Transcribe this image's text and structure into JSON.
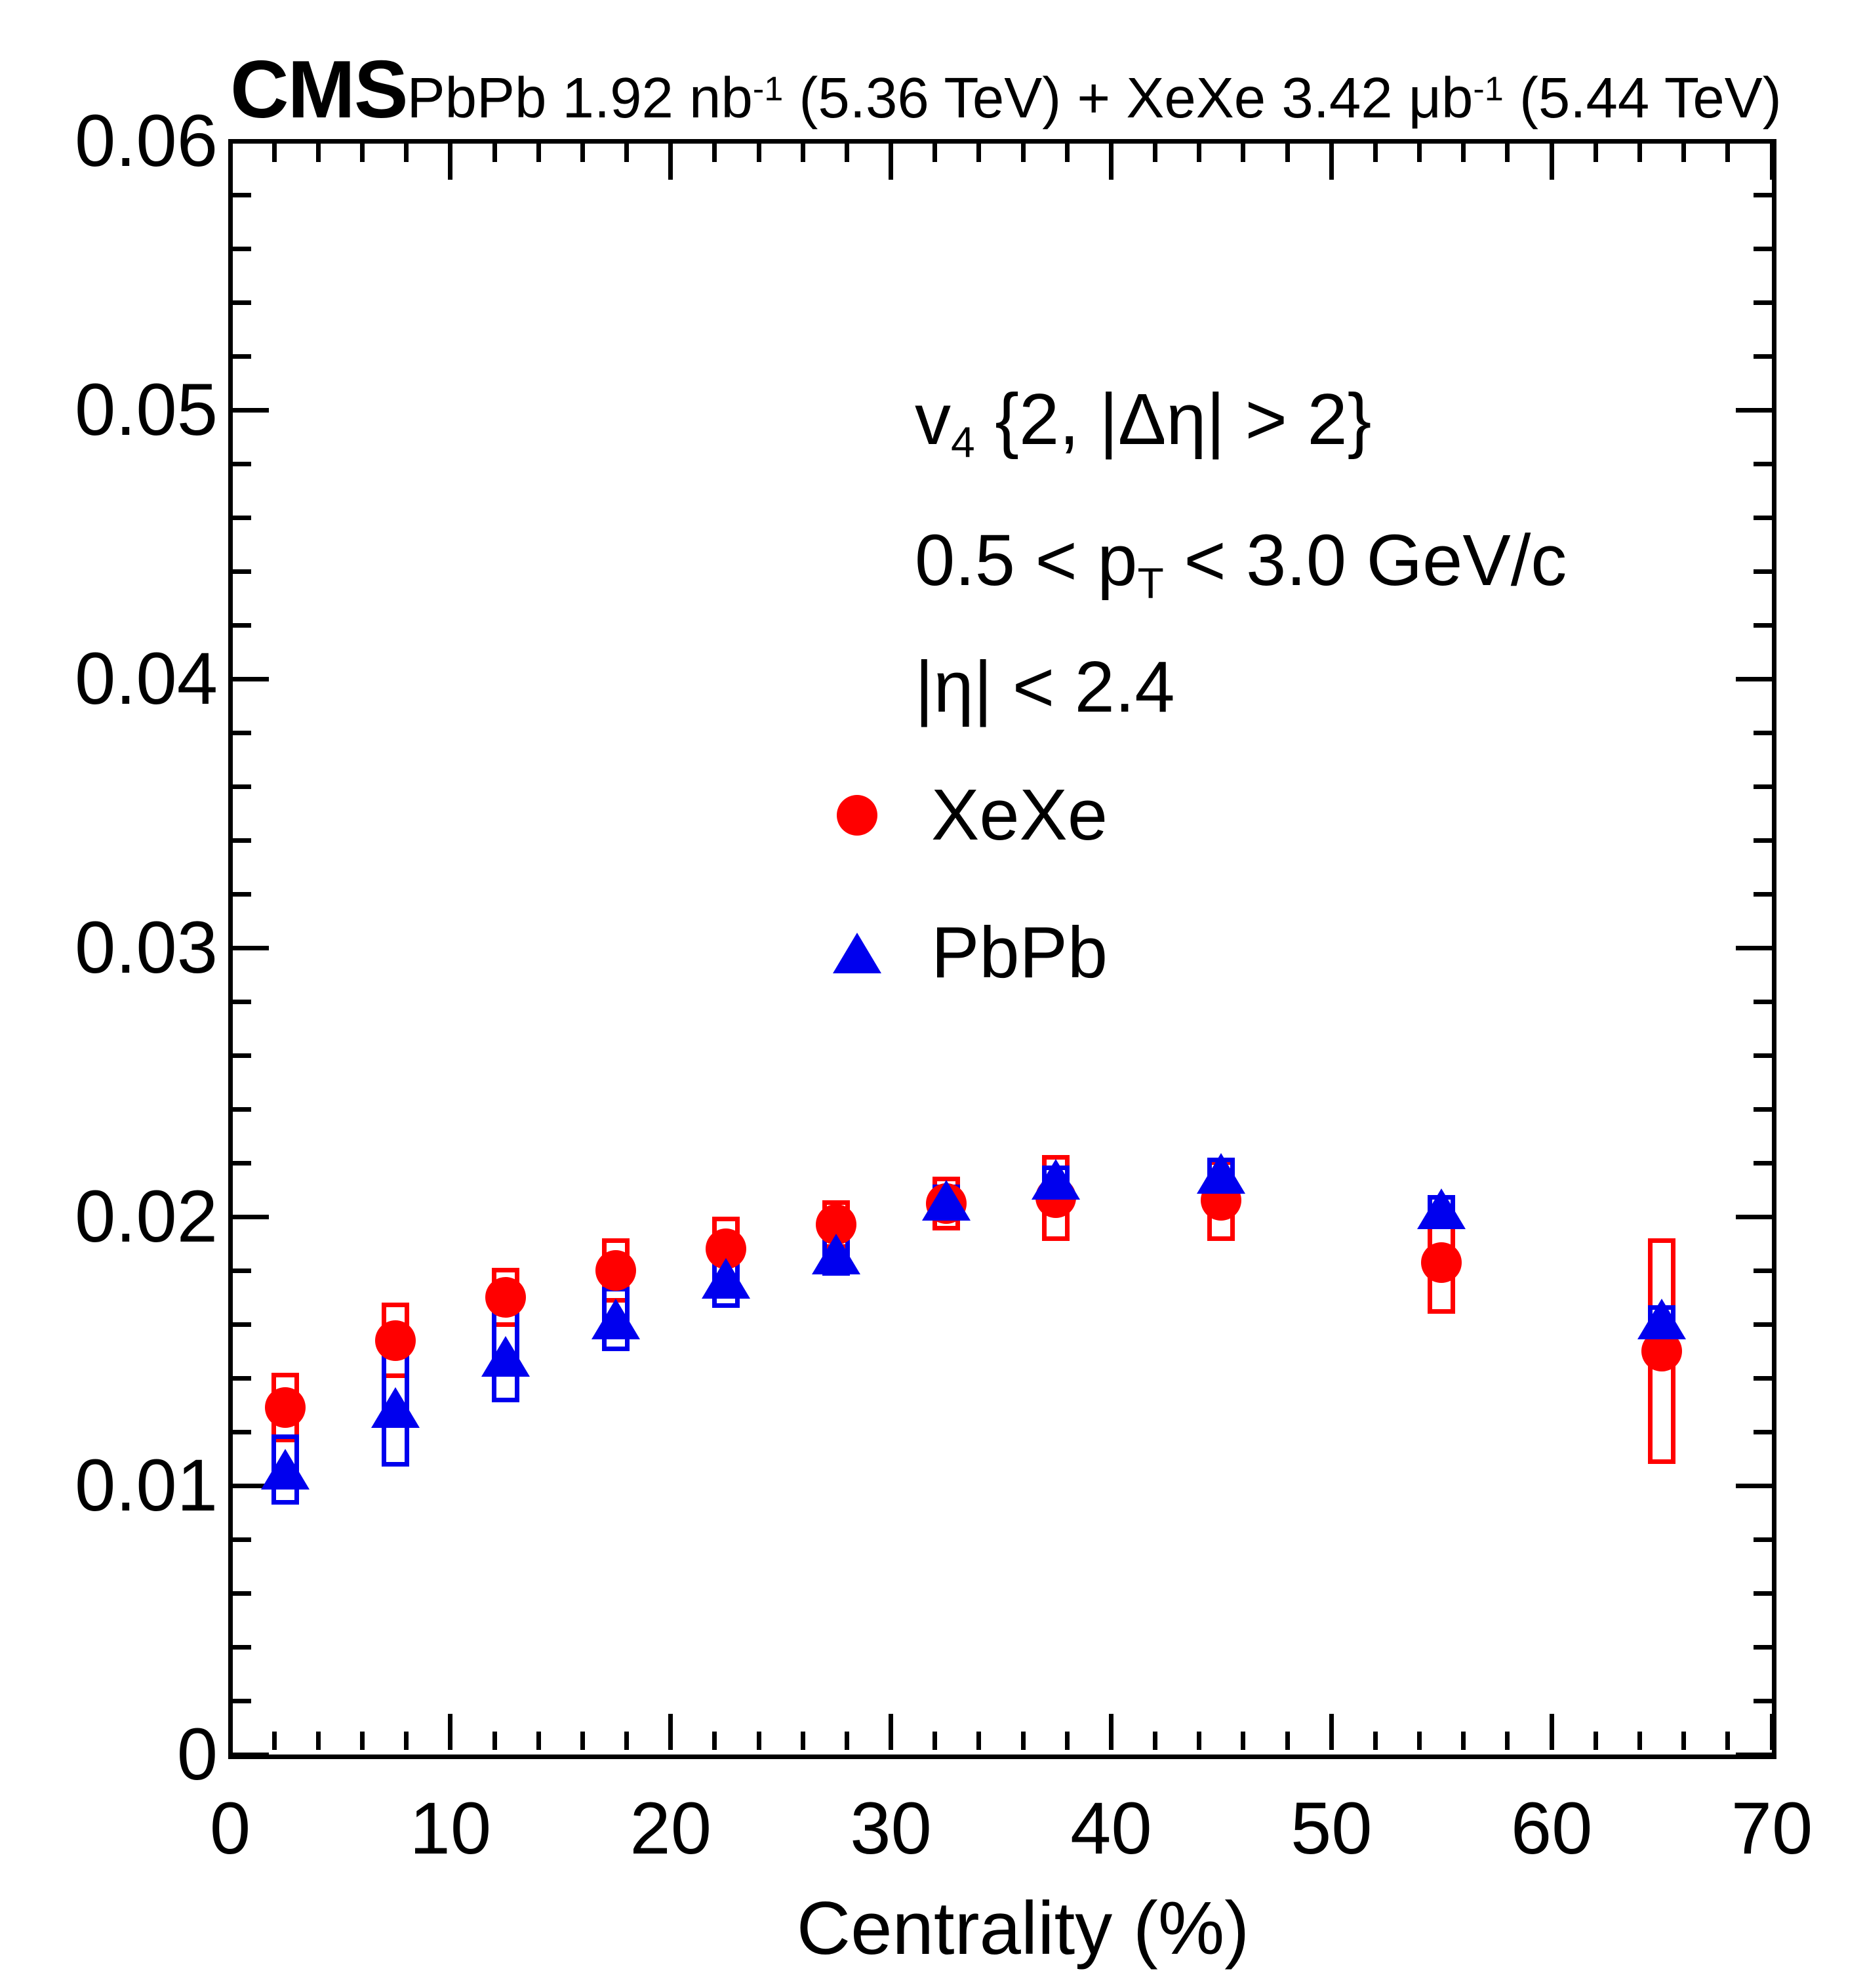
{
  "header": {
    "experiment": "CMS",
    "luminosity_parts": [
      {
        "text": "PbPb 1.92 nb"
      },
      {
        "sup": "-1"
      },
      {
        "text": " (5.36 TeV) + XeXe 3.42 μb"
      },
      {
        "sup": "-1"
      },
      {
        "text": " (5.44 TeV)"
      }
    ]
  },
  "annotations": {
    "line1_parts": [
      {
        "text": "v"
      },
      {
        "sub": "4"
      },
      {
        "text": " {2, |Δη| > 2}"
      }
    ],
    "line2_parts": [
      {
        "text": "0.5 < p"
      },
      {
        "sub": "T"
      },
      {
        "text": " < 3.0 GeV/c"
      }
    ],
    "line3": "|η| < 2.4"
  },
  "legend": {
    "items": [
      {
        "label": "XeXe",
        "marker": "circle",
        "color": "#ff0000"
      },
      {
        "label": "PbPb",
        "marker": "triangle",
        "color": "#0000ee"
      }
    ]
  },
  "axes": {
    "x": {
      "title": "Centrality (%)",
      "min": 0,
      "max": 70,
      "major_step": 10,
      "minor_step": 2,
      "tick_labels": [
        "0",
        "10",
        "20",
        "30",
        "40",
        "50",
        "60",
        "70"
      ]
    },
    "y": {
      "title": "",
      "min": 0,
      "max": 0.06,
      "major_step": 0.01,
      "minor_step": 0.002,
      "tick_labels": [
        "0",
        "0.01",
        "0.02",
        "0.03",
        "0.04",
        "0.05",
        "0.06"
      ]
    }
  },
  "chart_data": {
    "type": "scatter",
    "title": "CMS PbPb 1.92 nb-1 (5.36 TeV) + XeXe 3.42 ub-1 (5.44 TeV)",
    "xlabel": "Centrality (%)",
    "ylabel": "v4 {2, |dEta| > 2}",
    "xlim": [
      0,
      70
    ],
    "ylim": [
      0,
      0.06
    ],
    "grid": false,
    "legend_position": "inside-center",
    "x_values": [
      2.5,
      7.5,
      12.5,
      17.5,
      22.5,
      27.5,
      32.5,
      37.5,
      45,
      55,
      65
    ],
    "series": [
      {
        "name": "XeXe",
        "marker": "circle",
        "color": "#ff0000",
        "values": [
          0.0129,
          0.0154,
          0.017,
          0.018,
          0.0188,
          0.0197,
          0.0205,
          0.0207,
          0.0206,
          0.0183,
          0.015
        ],
        "sys_err": [
          0.0013,
          0.0014,
          0.0011,
          0.0012,
          0.0012,
          0.0009,
          0.001,
          0.0016,
          0.0015,
          0.0019,
          0.0042
        ],
        "stat_err": [
          0.0001,
          0.0001,
          0.0001,
          0.0001,
          0.0001,
          0.0001,
          0.0001,
          0.0002,
          0.0002,
          0.0003,
          0.0005
        ]
      },
      {
        "name": "PbPb",
        "marker": "triangle",
        "color": "#0000ee",
        "values": [
          0.0106,
          0.0129,
          0.0148,
          0.0162,
          0.0177,
          0.0186,
          0.0206,
          0.0214,
          0.0216,
          0.0203,
          0.0162
        ],
        "sys_err": [
          0.0013,
          0.0022,
          0.0017,
          0.0012,
          0.0011,
          0.0008,
          0.0006,
          0.0005,
          0.0006,
          0.0005,
          0.0005
        ],
        "stat_err": [
          8e-05,
          8e-05,
          8e-05,
          8e-05,
          8e-05,
          8e-05,
          0.0001,
          0.0001,
          0.0001,
          0.0002,
          0.0004
        ]
      }
    ]
  }
}
